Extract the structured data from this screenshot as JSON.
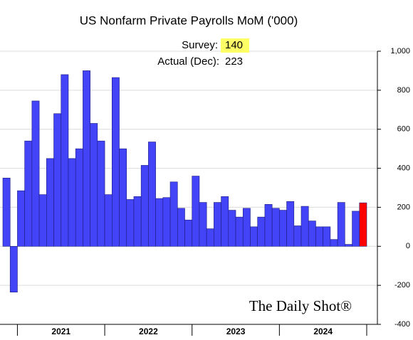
{
  "chart_data": {
    "type": "bar",
    "title": "US Nonfarm Private Payrolls MoM ('000)",
    "annotations": {
      "survey_label": "Survey:",
      "survey_value": 140,
      "actual_label": "Actual (Dec):",
      "actual_value": 223
    },
    "logo": "The Daily Shot®",
    "categories": [
      null,
      null,
      null,
      null,
      null,
      null,
      null,
      null,
      null,
      null,
      null,
      null,
      null,
      null,
      null,
      null,
      null,
      null,
      null,
      null,
      null,
      null,
      null,
      null,
      null,
      null,
      null,
      null,
      null,
      null,
      null,
      null,
      null,
      null,
      null,
      null,
      null,
      null,
      null,
      null,
      null,
      null,
      null,
      null,
      null,
      null,
      null,
      null,
      null,
      null
    ],
    "year_labels": [
      "2021",
      "2022",
      "2023",
      "2024"
    ],
    "values": [
      350,
      -235,
      285,
      540,
      745,
      265,
      450,
      680,
      880,
      450,
      500,
      900,
      630,
      540,
      265,
      865,
      500,
      240,
      255,
      415,
      535,
      245,
      250,
      330,
      195,
      135,
      360,
      225,
      90,
      225,
      255,
      185,
      150,
      195,
      100,
      150,
      215,
      195,
      185,
      230,
      105,
      205,
      130,
      100,
      100,
      35,
      225,
      10,
      180,
      223
    ],
    "colors": [
      "#4343f7",
      "#4343f7",
      "#4343f7",
      "#4343f7",
      "#4343f7",
      "#4343f7",
      "#4343f7",
      "#4343f7",
      "#4343f7",
      "#4343f7",
      "#4343f7",
      "#4343f7",
      "#4343f7",
      "#4343f7",
      "#4343f7",
      "#4343f7",
      "#4343f7",
      "#4343f7",
      "#4343f7",
      "#4343f7",
      "#4343f7",
      "#4343f7",
      "#4343f7",
      "#4343f7",
      "#4343f7",
      "#4343f7",
      "#4343f7",
      "#4343f7",
      "#4343f7",
      "#4343f7",
      "#4343f7",
      "#4343f7",
      "#4343f7",
      "#4343f7",
      "#4343f7",
      "#4343f7",
      "#4343f7",
      "#4343f7",
      "#4343f7",
      "#4343f7",
      "#4343f7",
      "#4343f7",
      "#4343f7",
      "#4343f7",
      "#4343f7",
      "#4343f7",
      "#4343f7",
      "#4343f7",
      "#4343f7",
      "#ff0000"
    ],
    "ylim": [
      -400,
      1000
    ],
    "yticks": [
      -400,
      -200,
      0,
      200,
      400,
      600,
      800,
      {
        "value": 1000,
        "label": "1,000"
      }
    ],
    "grid": true
  }
}
